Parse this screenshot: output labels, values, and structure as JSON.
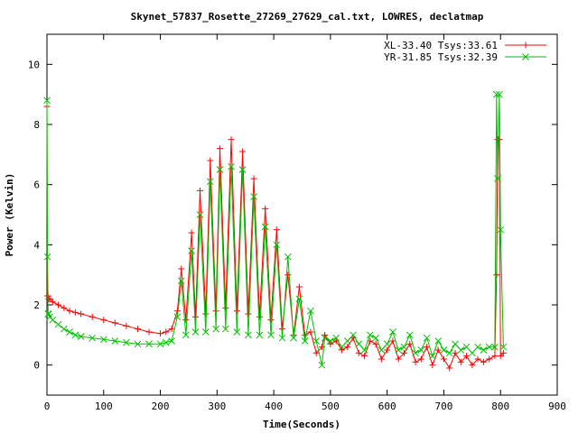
{
  "chart_data": {
    "type": "line",
    "title": "Skynet_57837_Rosette_27269_27629_cal.txt, LOWRES, declatmap",
    "xlabel": "Time(Seconds)",
    "ylabel": "Power (Kelvin)",
    "xlim": [
      0,
      900
    ],
    "ylim": [
      -1,
      11
    ],
    "xticks": [
      0,
      100,
      200,
      300,
      400,
      500,
      600,
      700,
      800,
      900
    ],
    "yticks": [
      0,
      2,
      4,
      6,
      8,
      10
    ],
    "grid": false,
    "legend_position": "top-right",
    "series": [
      {
        "name": "XL-33.40 Tsys:33.61",
        "color": "#ff0000",
        "marker": "plus",
        "x": [
          0,
          1,
          2,
          3,
          5,
          10,
          20,
          30,
          40,
          50,
          60,
          80,
          100,
          120,
          140,
          160,
          180,
          200,
          210,
          220,
          230,
          237,
          245,
          255,
          262,
          270,
          280,
          288,
          298,
          305,
          315,
          325,
          335,
          345,
          355,
          365,
          375,
          385,
          395,
          405,
          415,
          425,
          435,
          445,
          455,
          465,
          475,
          485,
          490,
          500,
          510,
          520,
          530,
          540,
          550,
          560,
          570,
          580,
          590,
          600,
          610,
          620,
          630,
          640,
          650,
          660,
          670,
          680,
          690,
          700,
          710,
          720,
          730,
          740,
          750,
          760,
          770,
          780,
          790,
          793,
          795,
          798,
          800,
          805
        ],
        "y": [
          8.6,
          2.3,
          2.3,
          2.2,
          2.2,
          2.1,
          2.0,
          1.9,
          1.8,
          1.75,
          1.7,
          1.6,
          1.5,
          1.4,
          1.3,
          1.2,
          1.1,
          1.05,
          1.1,
          1.2,
          1.8,
          3.2,
          1.5,
          4.4,
          1.6,
          5.8,
          1.7,
          6.8,
          1.8,
          7.2,
          1.9,
          7.5,
          1.8,
          7.1,
          1.7,
          6.2,
          1.6,
          5.2,
          1.5,
          4.5,
          1.2,
          3.0,
          1.0,
          2.6,
          1.0,
          1.1,
          0.4,
          0.6,
          1.0,
          0.7,
          0.8,
          0.5,
          0.6,
          0.9,
          0.4,
          0.3,
          0.8,
          0.7,
          0.2,
          0.5,
          0.8,
          0.2,
          0.4,
          0.7,
          0.1,
          0.2,
          0.6,
          0.0,
          0.5,
          0.2,
          -0.1,
          0.4,
          0.1,
          0.3,
          0.0,
          0.2,
          0.1,
          0.2,
          0.3,
          3.0,
          7.5,
          7.5,
          0.3,
          0.4
        ]
      },
      {
        "name": "YR-31.85 Tsys:32.39",
        "color": "#00c000",
        "marker": "cross",
        "x": [
          0,
          1,
          2,
          3,
          5,
          10,
          20,
          30,
          40,
          50,
          60,
          80,
          100,
          120,
          140,
          160,
          180,
          200,
          210,
          220,
          230,
          237,
          245,
          255,
          262,
          270,
          280,
          288,
          298,
          305,
          315,
          325,
          335,
          345,
          355,
          365,
          375,
          385,
          395,
          405,
          415,
          425,
          435,
          445,
          455,
          465,
          475,
          485,
          490,
          500,
          510,
          520,
          530,
          540,
          550,
          560,
          570,
          580,
          590,
          600,
          610,
          620,
          630,
          640,
          650,
          660,
          670,
          680,
          690,
          700,
          710,
          720,
          730,
          740,
          750,
          760,
          770,
          780,
          790,
          793,
          795,
          798,
          800,
          805
        ],
        "y": [
          8.8,
          3.6,
          1.7,
          1.7,
          1.6,
          1.5,
          1.35,
          1.2,
          1.1,
          1.0,
          0.95,
          0.9,
          0.85,
          0.8,
          0.75,
          0.7,
          0.7,
          0.7,
          0.75,
          0.8,
          1.6,
          2.8,
          1.0,
          3.8,
          1.1,
          5.0,
          1.1,
          6.1,
          1.2,
          6.5,
          1.2,
          6.6,
          1.1,
          6.5,
          1.0,
          5.6,
          1.0,
          4.6,
          1.0,
          4.0,
          0.9,
          3.6,
          0.9,
          2.2,
          0.8,
          1.8,
          0.8,
          0.0,
          0.9,
          0.8,
          0.9,
          0.6,
          0.8,
          1.0,
          0.7,
          0.5,
          1.0,
          0.9,
          0.5,
          0.7,
          1.1,
          0.5,
          0.6,
          1.0,
          0.4,
          0.5,
          0.9,
          0.3,
          0.8,
          0.5,
          0.4,
          0.7,
          0.5,
          0.6,
          0.4,
          0.6,
          0.5,
          0.6,
          0.6,
          9.0,
          6.2,
          9.0,
          4.5,
          0.6
        ]
      }
    ]
  }
}
